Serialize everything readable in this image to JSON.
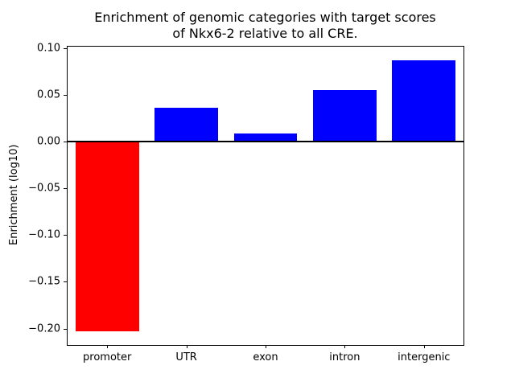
{
  "chart_data": {
    "type": "bar",
    "title": "Enrichment of genomic categories with target scores\nof Nkx6-2 relative to all CRE.",
    "title_lines": [
      "Enrichment of genomic categories with target scores",
      "of Nkx6-2 relative to all CRE."
    ],
    "categories": [
      "promoter",
      "UTR",
      "exon",
      "intron",
      "intergenic"
    ],
    "values": [
      -0.203,
      0.036,
      0.009,
      0.055,
      0.087
    ],
    "bar_colors": [
      "#ff0000",
      "#0000ff",
      "#0000ff",
      "#0000ff",
      "#0000ff"
    ],
    "xlabel": "",
    "ylabel": "Enrichment (log10)",
    "ylim": [
      -0.2175,
      0.1015
    ],
    "yticks": [
      0.1,
      0.05,
      0.0,
      -0.05,
      -0.1,
      -0.15,
      -0.2
    ],
    "ytick_labels": [
      "0.10",
      "0.05",
      "0.00",
      "−0.05",
      "−0.10",
      "−0.15",
      "−0.20"
    ],
    "zero_line": true,
    "grid": false,
    "legend": false,
    "bar_width_fraction": 0.8
  }
}
